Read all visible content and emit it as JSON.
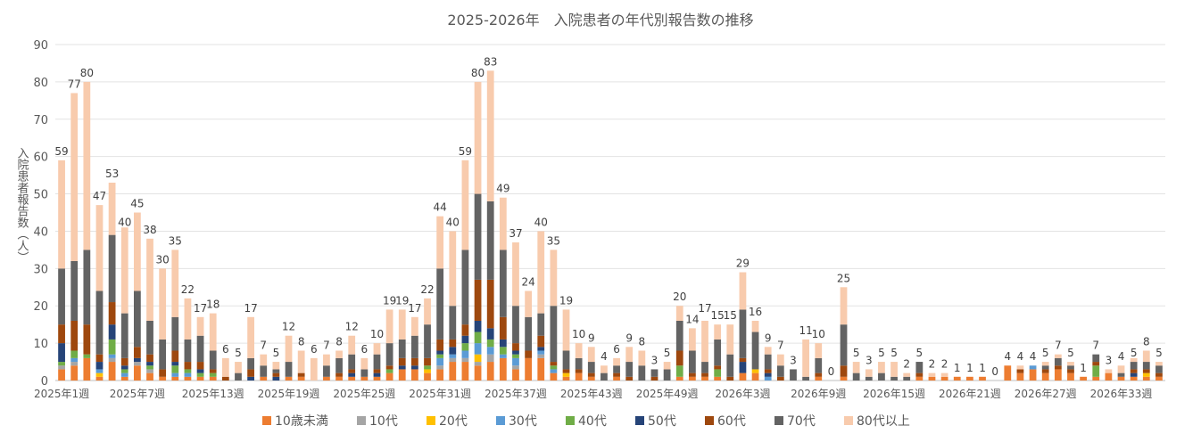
{
  "chart_data": {
    "type": "bar",
    "stacked": true,
    "title": "2025-2026年　入院患者の年代別報告数の推移",
    "ylabel": "入院患者報告数（人）",
    "xlabel": "",
    "ylim": [
      0,
      90
    ],
    "yticks": [
      0,
      10,
      20,
      30,
      40,
      50,
      60,
      70,
      80,
      90
    ],
    "grid": true,
    "legend_position": "bottom",
    "x_tick_labels": [
      "2025年1週",
      "2025年7週",
      "2025年13週",
      "2025年19週",
      "2025年25週",
      "2025年31週",
      "2025年37週",
      "2025年43週",
      "2025年49週",
      "2026年3週",
      "2026年9週",
      "2026年15週",
      "2026年21週",
      "2026年27週",
      "2026年33週"
    ],
    "x_tick_every": 6,
    "totals": [
      59,
      77,
      80,
      47,
      53,
      40,
      45,
      38,
      30,
      35,
      22,
      17,
      18,
      6,
      5,
      17,
      7,
      5,
      12,
      8,
      6,
      7,
      8,
      12,
      6,
      10,
      19,
      19,
      17,
      22,
      44,
      40,
      59,
      80,
      83,
      49,
      37,
      24,
      40,
      35,
      19,
      10,
      9,
      4,
      6,
      9,
      8,
      3,
      5,
      20,
      14,
      17,
      15,
      15,
      29,
      16,
      9,
      7,
      3,
      11,
      10,
      0,
      25,
      5,
      3,
      5,
      5,
      2,
      5,
      2,
      2,
      1,
      1,
      1,
      0,
      4,
      4,
      4,
      5,
      7,
      5,
      1,
      7,
      3,
      4,
      5,
      8,
      5
    ],
    "series": [
      {
        "name": "10歳未満",
        "color": "#ED7D31",
        "values": [
          3,
          4,
          6,
          1,
          5,
          1,
          4,
          2,
          1,
          1,
          1,
          1,
          1,
          0,
          0,
          0,
          1,
          0,
          1,
          1,
          0,
          1,
          1,
          1,
          1,
          1,
          2,
          3,
          3,
          2,
          3,
          5,
          5,
          4,
          5,
          6,
          3,
          6,
          6,
          2,
          1,
          2,
          1,
          0,
          1,
          0,
          0,
          0,
          0,
          1,
          1,
          1,
          1,
          0,
          2,
          2,
          0,
          0,
          0,
          0,
          1,
          0,
          1,
          0,
          0,
          0,
          0,
          0,
          1,
          1,
          1,
          1,
          1,
          1,
          0,
          4,
          2,
          3,
          2,
          3,
          2,
          1,
          1,
          2,
          1,
          1,
          1,
          1
        ]
      },
      {
        "name": "10代",
        "color": "#A5A5A5",
        "values": [
          1,
          1,
          0,
          0,
          1,
          0,
          1,
          1,
          0,
          0,
          0,
          0,
          0,
          0,
          0,
          0,
          0,
          0,
          0,
          0,
          0,
          0,
          0,
          0,
          0,
          0,
          0,
          0,
          0,
          0,
          1,
          1,
          1,
          1,
          2,
          0,
          1,
          0,
          1,
          0,
          0,
          0,
          0,
          0,
          0,
          0,
          0,
          0,
          0,
          0,
          0,
          0,
          0,
          0,
          0,
          0,
          0,
          0,
          0,
          0,
          0,
          0,
          0,
          0,
          0,
          0,
          0,
          0,
          0,
          0,
          0,
          0,
          0,
          0,
          0,
          0,
          0,
          0,
          0,
          0,
          0,
          0,
          0,
          0,
          0,
          0,
          0,
          0
        ]
      },
      {
        "name": "20代",
        "color": "#FFC000",
        "values": [
          0,
          0,
          0,
          1,
          0,
          0,
          0,
          0,
          0,
          0,
          0,
          0,
          0,
          0,
          0,
          0,
          0,
          0,
          0,
          0,
          0,
          0,
          0,
          0,
          0,
          0,
          0,
          0,
          0,
          1,
          0,
          0,
          0,
          2,
          0,
          0,
          0,
          0,
          0,
          0,
          1,
          0,
          0,
          0,
          0,
          0,
          0,
          0,
          0,
          0,
          0,
          0,
          0,
          0,
          0,
          1,
          0,
          0,
          0,
          0,
          0,
          0,
          0,
          0,
          0,
          0,
          0,
          0,
          0,
          0,
          0,
          0,
          0,
          0,
          0,
          0,
          0,
          0,
          0,
          0,
          0,
          0,
          0,
          0,
          0,
          0,
          1,
          0
        ]
      },
      {
        "name": "30代",
        "color": "#5B9BD5",
        "values": [
          0,
          1,
          0,
          1,
          1,
          1,
          0,
          0,
          0,
          1,
          1,
          0,
          0,
          0,
          0,
          0,
          0,
          0,
          0,
          0,
          0,
          0,
          0,
          0,
          0,
          0,
          0,
          0,
          0,
          0,
          2,
          1,
          2,
          3,
          2,
          1,
          2,
          0,
          1,
          1,
          0,
          0,
          0,
          0,
          0,
          0,
          0,
          0,
          0,
          0,
          0,
          0,
          0,
          0,
          0,
          0,
          1,
          0,
          0,
          0,
          0,
          0,
          0,
          0,
          0,
          0,
          0,
          0,
          0,
          0,
          0,
          0,
          0,
          0,
          0,
          0,
          0,
          1,
          0,
          0,
          0,
          0,
          0,
          0,
          0,
          0,
          0,
          0
        ]
      },
      {
        "name": "40代",
        "color": "#70AD47",
        "values": [
          1,
          2,
          1,
          0,
          4,
          1,
          0,
          1,
          0,
          2,
          1,
          1,
          1,
          0,
          0,
          0,
          0,
          0,
          0,
          0,
          0,
          0,
          0,
          0,
          0,
          0,
          1,
          0,
          0,
          1,
          1,
          0,
          2,
          3,
          2,
          2,
          1,
          0,
          0,
          1,
          0,
          0,
          0,
          0,
          0,
          0,
          0,
          0,
          0,
          3,
          0,
          0,
          2,
          0,
          0,
          0,
          0,
          0,
          0,
          0,
          0,
          0,
          0,
          0,
          0,
          0,
          0,
          0,
          0,
          0,
          0,
          0,
          0,
          0,
          0,
          0,
          0,
          0,
          0,
          0,
          0,
          0,
          3,
          0,
          0,
          0,
          0,
          0
        ]
      },
      {
        "name": "50代",
        "color": "#264478",
        "values": [
          5,
          0,
          0,
          2,
          4,
          1,
          1,
          1,
          0,
          1,
          0,
          1,
          0,
          0,
          0,
          1,
          0,
          1,
          0,
          0,
          0,
          0,
          0,
          1,
          0,
          1,
          0,
          1,
          1,
          0,
          1,
          2,
          2,
          3,
          3,
          2,
          1,
          0,
          1,
          0,
          0,
          0,
          0,
          0,
          0,
          0,
          0,
          0,
          0,
          0,
          0,
          0,
          0,
          0,
          3,
          0,
          1,
          0,
          0,
          0,
          0,
          0,
          0,
          0,
          0,
          0,
          0,
          0,
          0,
          0,
          0,
          0,
          0,
          0,
          0,
          0,
          0,
          0,
          0,
          0,
          0,
          0,
          0,
          0,
          0,
          1,
          0,
          0
        ]
      },
      {
        "name": "60代",
        "color": "#9E480E",
        "values": [
          5,
          8,
          8,
          2,
          6,
          2,
          3,
          2,
          2,
          3,
          2,
          2,
          1,
          1,
          0,
          2,
          0,
          1,
          0,
          1,
          0,
          0,
          1,
          1,
          0,
          1,
          1,
          2,
          2,
          2,
          3,
          2,
          3,
          11,
          13,
          6,
          2,
          2,
          3,
          1,
          1,
          1,
          1,
          0,
          1,
          1,
          0,
          1,
          0,
          4,
          1,
          1,
          1,
          1,
          1,
          0,
          1,
          1,
          0,
          0,
          1,
          0,
          3,
          0,
          0,
          0,
          0,
          0,
          1,
          0,
          0,
          0,
          0,
          0,
          0,
          0,
          1,
          0,
          1,
          1,
          1,
          0,
          1,
          0,
          0,
          1,
          1,
          1
        ]
      },
      {
        "name": "70代",
        "color": "#636363",
        "values": [
          15,
          16,
          20,
          17,
          18,
          12,
          15,
          9,
          8,
          9,
          6,
          7,
          5,
          0,
          2,
          3,
          3,
          1,
          4,
          0,
          0,
          3,
          4,
          4,
          2,
          4,
          6,
          5,
          6,
          9,
          19,
          9,
          20,
          23,
          21,
          18,
          10,
          9,
          6,
          15,
          5,
          3,
          3,
          2,
          2,
          4,
          4,
          2,
          3,
          8,
          6,
          3,
          7,
          6,
          13,
          10,
          4,
          3,
          3,
          1,
          4,
          0,
          11,
          2,
          1,
          2,
          1,
          1,
          3,
          0,
          0,
          0,
          0,
          0,
          0,
          0,
          0,
          0,
          1,
          2,
          1,
          0,
          2,
          0,
          1,
          2,
          2,
          2
        ]
      },
      {
        "name": "80代以上",
        "color": "#F8CBAD",
        "values": [
          29,
          45,
          45,
          23,
          14,
          23,
          21,
          22,
          19,
          18,
          11,
          5,
          10,
          5,
          3,
          11,
          3,
          2,
          7,
          6,
          6,
          3,
          2,
          5,
          3,
          3,
          9,
          8,
          5,
          7,
          14,
          20,
          24,
          30,
          35,
          14,
          17,
          7,
          22,
          15,
          11,
          4,
          4,
          2,
          2,
          4,
          4,
          0,
          2,
          4,
          6,
          11,
          4,
          8,
          10,
          3,
          2,
          3,
          0,
          10,
          4,
          0,
          10,
          3,
          2,
          3,
          4,
          1,
          0,
          1,
          1,
          0,
          0,
          0,
          0,
          0,
          1,
          0,
          1,
          1,
          1,
          0,
          0,
          1,
          2,
          1,
          3,
          1
        ]
      }
    ]
  }
}
